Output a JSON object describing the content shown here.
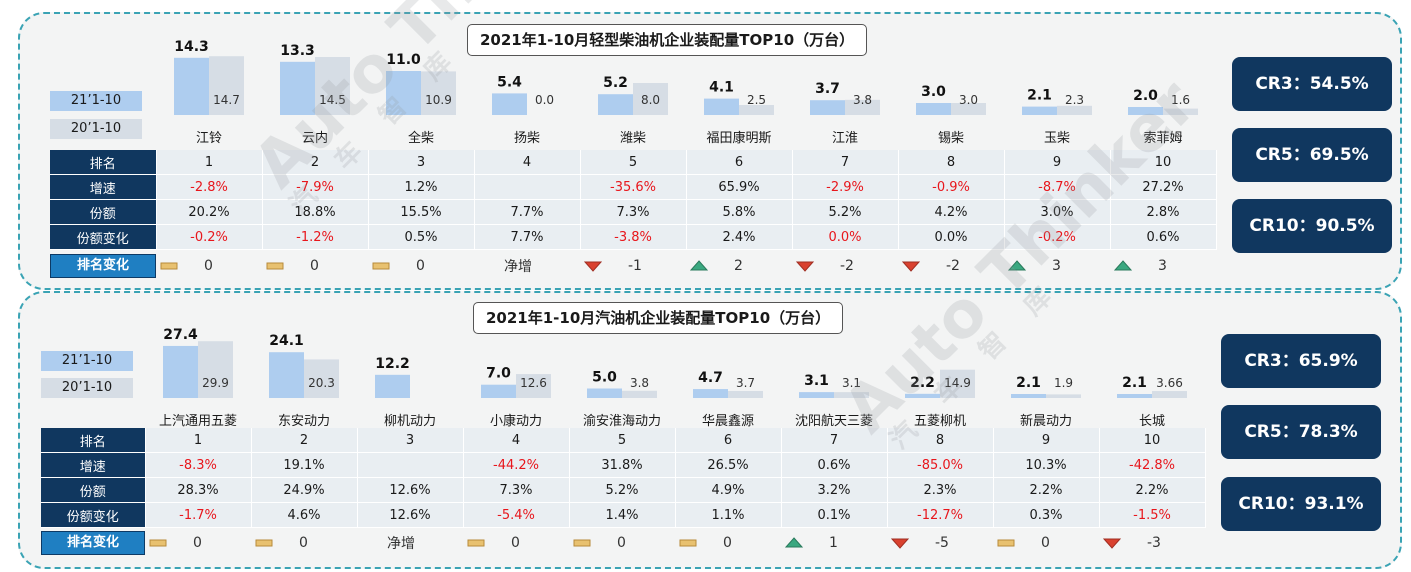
{
  "chart_data": [
    {
      "type": "bar",
      "title": "2021年1-10月轻型柴油机企业装配量TOP10（万台）",
      "legend": [
        "21’1-10",
        "20’1-10"
      ],
      "categories": [
        "江铃",
        "云内",
        "全柴",
        "扬柴",
        "潍柴",
        "福田康明斯",
        "江淮",
        "锡柴",
        "玉柴",
        "索菲姆"
      ],
      "series": [
        {
          "name": "21’1-10",
          "values": [
            14.3,
            13.3,
            11.0,
            5.4,
            5.2,
            4.1,
            3.7,
            3.0,
            2.1,
            2.0
          ],
          "labels": [
            "14.3",
            "13.3",
            "11.0",
            "5.4",
            "5.2",
            "4.1",
            "3.7",
            "3.0",
            "2.1",
            "2.0"
          ]
        },
        {
          "name": "20’1-10",
          "values": [
            14.7,
            14.5,
            10.9,
            0.0,
            8.0,
            2.5,
            3.8,
            3.0,
            2.3,
            1.6
          ],
          "labels": [
            "14.7",
            "14.5",
            "10.9",
            "0.0",
            "8.0",
            "2.5",
            "3.8",
            "3.0",
            "2.3",
            "1.6"
          ]
        }
      ],
      "table": {
        "row_headers": [
          "排名",
          "增速",
          "份额",
          "份额变化"
        ],
        "rank": [
          "1",
          "2",
          "3",
          "4",
          "5",
          "6",
          "7",
          "8",
          "9",
          "10"
        ],
        "growth": [
          "-2.8%",
          "-7.9%",
          "1.2%",
          "",
          "-35.6%",
          "65.9%",
          "-2.9%",
          "-0.9%",
          "-8.7%",
          "27.2%"
        ],
        "share": [
          "20.2%",
          "18.8%",
          "15.5%",
          "7.7%",
          "7.3%",
          "5.8%",
          "5.2%",
          "4.2%",
          "3.0%",
          "2.8%"
        ],
        "share_change": [
          "-0.2%",
          "-1.2%",
          "0.5%",
          "7.7%",
          "-3.8%",
          "2.4%",
          "0.0%",
          "0.0%",
          "-0.2%",
          "0.6%"
        ],
        "share_change_red": [
          true,
          true,
          false,
          false,
          true,
          false,
          true,
          false,
          true,
          false
        ]
      },
      "rank_change": {
        "label": "排名变化",
        "items": [
          {
            "icon": "flat",
            "text": "0"
          },
          {
            "icon": "flat",
            "text": "0"
          },
          {
            "icon": "flat",
            "text": "0"
          },
          {
            "icon": "none",
            "text": "净增"
          },
          {
            "icon": "down",
            "text": "-1"
          },
          {
            "icon": "up",
            "text": "2"
          },
          {
            "icon": "down",
            "text": "-2"
          },
          {
            "icon": "down",
            "text": "-2"
          },
          {
            "icon": "up",
            "text": "3"
          },
          {
            "icon": "up",
            "text": "3"
          }
        ]
      },
      "concentration": [
        "CR3：54.5%",
        "CR5：69.5%",
        "CR10：90.5%"
      ]
    },
    {
      "type": "bar",
      "title": "2021年1-10月汽油机企业装配量TOP10（万台）",
      "legend": [
        "21’1-10",
        "20’1-10"
      ],
      "categories": [
        "上汽通用五菱",
        "东安动力",
        "柳机动力",
        "小康动力",
        "渝安淮海动力",
        "华晨鑫源",
        "沈阳航天三菱",
        "五菱柳机",
        "新晨动力",
        "长城"
      ],
      "series": [
        {
          "name": "21’1-10",
          "values": [
            27.4,
            24.1,
            12.2,
            7.0,
            5.0,
            4.7,
            3.1,
            2.2,
            2.1,
            2.1
          ],
          "labels": [
            "27.4",
            "24.1",
            "12.2",
            "7.0",
            "5.0",
            "4.7",
            "3.1",
            "2.2",
            "2.1",
            "2.1"
          ]
        },
        {
          "name": "20’1-10",
          "values": [
            29.9,
            20.3,
            0,
            12.6,
            3.8,
            3.7,
            3.1,
            14.9,
            1.9,
            3.66
          ],
          "labels": [
            "29.9",
            "20.3",
            "",
            "12.6",
            "3.8",
            "3.7",
            "3.1",
            "14.9",
            "1.9",
            "3.66"
          ]
        }
      ],
      "table": {
        "row_headers": [
          "排名",
          "增速",
          "份额",
          "份额变化"
        ],
        "rank": [
          "1",
          "2",
          "3",
          "4",
          "5",
          "6",
          "7",
          "8",
          "9",
          "10"
        ],
        "growth": [
          "-8.3%",
          "19.1%",
          "",
          "-44.2%",
          "31.8%",
          "26.5%",
          "0.6%",
          "-85.0%",
          "10.3%",
          "-42.8%"
        ],
        "share": [
          "28.3%",
          "24.9%",
          "12.6%",
          "7.3%",
          "5.2%",
          "4.9%",
          "3.2%",
          "2.3%",
          "2.2%",
          "2.2%"
        ],
        "share_change": [
          "-1.7%",
          "4.6%",
          "12.6%",
          "-5.4%",
          "1.4%",
          "1.1%",
          "0.1%",
          "-12.7%",
          "0.3%",
          "-1.5%"
        ],
        "share_change_red": [
          true,
          false,
          false,
          true,
          false,
          false,
          false,
          true,
          false,
          true
        ]
      },
      "rank_change": {
        "label": "排名变化",
        "items": [
          {
            "icon": "flat",
            "text": "0"
          },
          {
            "icon": "flat",
            "text": "0"
          },
          {
            "icon": "none",
            "text": "净增"
          },
          {
            "icon": "flat",
            "text": "0"
          },
          {
            "icon": "flat",
            "text": "0"
          },
          {
            "icon": "flat",
            "text": "0"
          },
          {
            "icon": "up",
            "text": "1"
          },
          {
            "icon": "down",
            "text": "-5"
          },
          {
            "icon": "flat",
            "text": "0"
          },
          {
            "icon": "down",
            "text": "-3"
          }
        ]
      },
      "concentration": [
        "CR3：65.9%",
        "CR5：78.3%",
        "CR10：93.1%"
      ]
    }
  ],
  "watermark": {
    "brand": "Auto Thinker",
    "chinese": "汽 车 智 库"
  },
  "colors": {
    "current": "#aecdef",
    "previous": "#d6dde5",
    "header": "#10375f",
    "negative": "#e8161c",
    "rank_head": "#1f7fc2",
    "up": "#3aa880",
    "down": "#d9412f",
    "flat": "#e8c170"
  }
}
